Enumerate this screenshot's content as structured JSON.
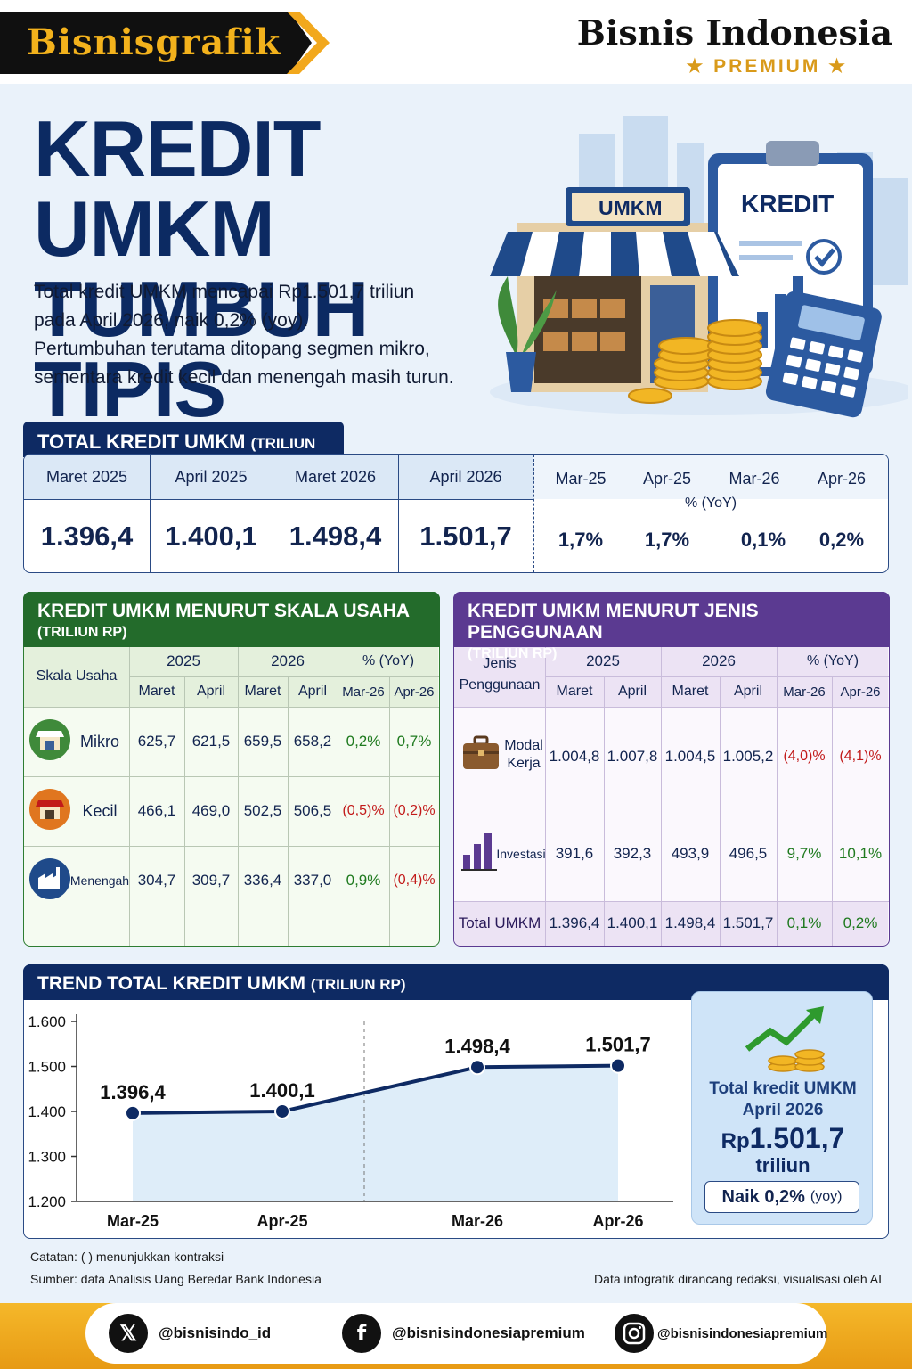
{
  "header": {
    "brand": "Bisnisgrafik",
    "publisher": "Bisnis Indonesia",
    "premium": "★ PREMIUM ★"
  },
  "title": {
    "line1": "KREDIT UMKM",
    "line2": "TUMBUH TIPIS"
  },
  "intro": {
    "line1": "Total kredit UMKM mencapai Rp1.501,7 triliun",
    "line2": "pada April 2026, naik 0,2% (yoy).",
    "line3": "Pertumbuhan terutama ditopang segmen mikro,",
    "line4": "sementara kredit kecil dan menengah masih turun."
  },
  "illustration": {
    "shop_sign": "UMKM",
    "clipboard_label": "KREDIT"
  },
  "total": {
    "tab_title": "TOTAL KREDIT UMKM",
    "tab_unit": "(TRILIUN RP)",
    "periods": [
      "Maret 2025",
      "April 2025",
      "Maret 2026",
      "April 2026"
    ],
    "values": [
      "1.396,4",
      "1.400,1",
      "1.498,4",
      "1.501,7"
    ],
    "yoy_periods": [
      "Mar-25",
      "Apr-25",
      "Mar-26",
      "Apr-26"
    ],
    "yoy_label": "% (YoY)",
    "yoy_values": [
      "1,7%",
      "1,7%",
      "0,1%",
      "0,2%"
    ]
  },
  "skala": {
    "title": "KREDIT UMKM MENURUT SKALA USAHA",
    "unit": "(TRILIUN RP)",
    "col_head": "Skala Usaha",
    "years": [
      "2025",
      "2026",
      "% (YoY)"
    ],
    "subcols": [
      "Maret",
      "April",
      "Maret",
      "April",
      "Mar-26",
      "Apr-26"
    ],
    "rows": [
      {
        "name": "Mikro",
        "icon": "shop-icon",
        "values": [
          "625,7",
          "621,5",
          "659,5",
          "658,2"
        ],
        "yoy": [
          "0,2%",
          "0,7%"
        ],
        "yoy_neg": [
          false,
          false
        ]
      },
      {
        "name": "Kecil",
        "icon": "store-icon",
        "values": [
          "466,1",
          "469,0",
          "502,5",
          "506,5"
        ],
        "yoy": [
          "(0,5)%",
          "(0,2)%"
        ],
        "yoy_neg": [
          true,
          true
        ]
      },
      {
        "name": "Menengah",
        "icon": "factory-icon",
        "values": [
          "304,7",
          "309,7",
          "336,4",
          "337,0"
        ],
        "yoy": [
          "0,9%",
          "(0,4)%"
        ],
        "yoy_neg": [
          false,
          true
        ]
      }
    ]
  },
  "penggunaan": {
    "title": "KREDIT UMKM MENURUT JENIS PENGGUNAAN",
    "unit": "(TRILIUN RP)",
    "col_head_1": "Jenis",
    "col_head_2": "Penggunaan",
    "years": [
      "2025",
      "2026",
      "% (YoY)"
    ],
    "subcols": [
      "Maret",
      "April",
      "Maret",
      "April",
      "Mar-26",
      "Apr-26"
    ],
    "rows": [
      {
        "name1": "Modal",
        "name2": "Kerja",
        "icon": "briefcase-icon",
        "values": [
          "1.004,8",
          "1.007,8",
          "1.004,5",
          "1.005,2"
        ],
        "yoy": [
          "(4,0)%",
          "(4,1)%"
        ]
      },
      {
        "name1": "Investasi",
        "name2": "",
        "icon": "bar-chart-icon",
        "values": [
          "391,6",
          "392,3",
          "493,9",
          "496,5"
        ],
        "yoy": [
          "9,7%",
          "10,1%"
        ]
      }
    ],
    "total": {
      "name": "Total UMKM",
      "values": [
        "1.396,4",
        "1.400,1",
        "1.498,4",
        "1.501,7"
      ],
      "yoy": [
        "0,1%",
        "0,2%"
      ]
    }
  },
  "chart_data": {
    "type": "line",
    "title": "TREND TOTAL KREDIT UMKM",
    "unit": "(TRILIUN RP)",
    "categories": [
      "Mar-25",
      "Apr-25",
      "Mar-26",
      "Apr-26"
    ],
    "values": [
      1396.4,
      1400.1,
      1498.4,
      1501.7
    ],
    "data_labels": [
      "1.396,4",
      "1.400,1",
      "1.498,4",
      "1.501,7"
    ],
    "yticks": [
      "1.600",
      "1.500",
      "1.400",
      "1.300",
      "1.200"
    ],
    "ylim": [
      1200,
      1600
    ],
    "grid": false,
    "colors": {
      "line": "#0e2a63",
      "area": "#d6e8f8"
    }
  },
  "summary": {
    "line1": "Total kredit UMKM",
    "line2": "April 2026",
    "prefix": "Rp",
    "value": "1.501,7",
    "unit": "triliun",
    "badge_main": "Naik 0,2%",
    "badge_sub": "(yoy)"
  },
  "notes": {
    "note": "Catatan: ( ) menunjukkan kontraksi",
    "source": "Sumber: data Analisis Uang Beredar Bank Indonesia",
    "credit": "Data infografik dirancang redaksi, visualisasi oleh AI"
  },
  "social": {
    "x": "@bisnisindo_id",
    "facebook": "@bisnisindonesiapremium",
    "instagram": "@bisnisindonesiapremium"
  },
  "colors": {
    "navy": "#0e2a63",
    "gold": "#f2a81d",
    "green": "#236b2b",
    "purple": "#5b3a91",
    "red": "#c21a1a"
  }
}
